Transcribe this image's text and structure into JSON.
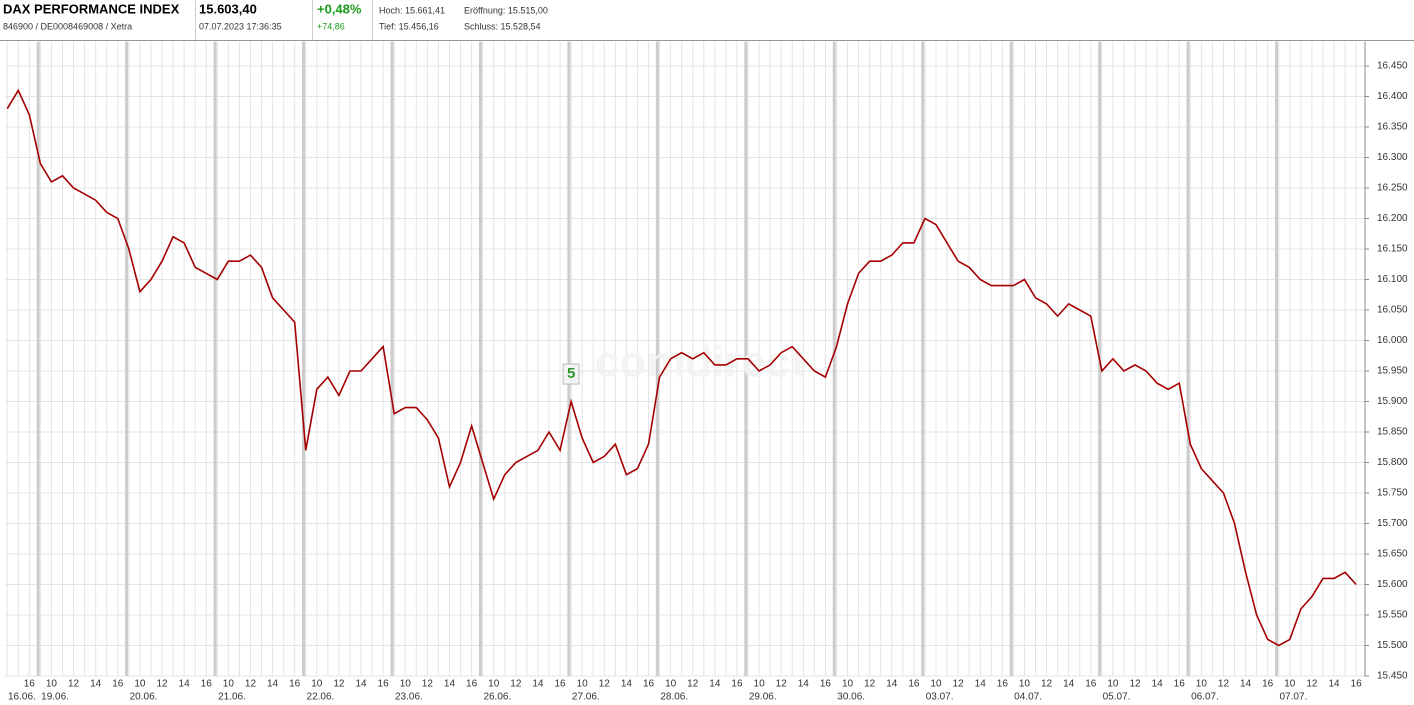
{
  "header": {
    "title": "DAX PERFORMANCE INDEX",
    "ids": "846900 / DE0008469008 / Xetra",
    "price": "15.603,40",
    "timestamp": "07.07.2023 17:36:35",
    "change_pct": "+0,48%",
    "change_abs": "+74,86",
    "high": "Hoch: 15.661,41",
    "open": "Eröffnung: 15.515,00",
    "low": "Tief: 15.456,16",
    "close": "Schluss: 15.528,54"
  },
  "chart_data": {
    "type": "line",
    "watermark": "comdirect",
    "annotation": "5",
    "categories": [
      null,
      null,
      "16",
      null,
      "10",
      null,
      "12",
      null,
      "14",
      null,
      "16",
      null,
      "10",
      null,
      "12",
      null,
      "14",
      null,
      "16",
      null,
      "10",
      null,
      "12",
      null,
      "14",
      null,
      "16",
      null,
      "10",
      null,
      "12",
      null,
      "14",
      null,
      "16",
      null,
      "10",
      null,
      "12",
      null,
      "14",
      null,
      "16",
      null,
      "10",
      null,
      "12",
      null,
      "14",
      null,
      "16",
      null,
      "10",
      null,
      "12",
      null,
      "14",
      null,
      "16",
      null,
      "10",
      null,
      "12",
      null,
      "14",
      null,
      "16",
      null,
      "10",
      null,
      "12",
      null,
      "14",
      null,
      "16",
      null,
      "10",
      null,
      "12",
      null,
      "14",
      null,
      "16",
      null,
      "10",
      null,
      "12",
      null,
      "14",
      null,
      "16",
      null,
      "10",
      null,
      "12",
      null,
      "14",
      null,
      "16",
      null,
      "10",
      null,
      "12",
      null,
      "14",
      null,
      "16",
      null,
      "10",
      null,
      "12",
      null,
      "14",
      null,
      "16",
      null,
      "10",
      null,
      "12",
      null,
      "14",
      null,
      "16"
    ],
    "day_labels": [
      "16.06.",
      null,
      null,
      "19.06.",
      null,
      null,
      null,
      null,
      null,
      null,
      null,
      "20.06.",
      null,
      null,
      null,
      null,
      null,
      null,
      null,
      "21.06.",
      null,
      null,
      null,
      null,
      null,
      null,
      null,
      "22.06.",
      null,
      null,
      null,
      null,
      null,
      null,
      null,
      "23.06.",
      null,
      null,
      null,
      null,
      null,
      null,
      null,
      "26.06.",
      null,
      null,
      null,
      null,
      null,
      null,
      null,
      "27.06.",
      null,
      null,
      null,
      null,
      null,
      null,
      null,
      "28.06.",
      null,
      null,
      null,
      null,
      null,
      null,
      null,
      "29.06.",
      null,
      null,
      null,
      null,
      null,
      null,
      null,
      "30.06.",
      null,
      null,
      null,
      null,
      null,
      null,
      null,
      "03.07.",
      null,
      null,
      null,
      null,
      null,
      null,
      null,
      "04.07.",
      null,
      null,
      null,
      null,
      null,
      null,
      null,
      "05.07.",
      null,
      null,
      null,
      null,
      null,
      null,
      null,
      "06.07.",
      null,
      null,
      null,
      null,
      null,
      null,
      null,
      "07.07.",
      null,
      null,
      null,
      null,
      null,
      null,
      null
    ],
    "series": [
      {
        "color": "#a50000",
        "values": [
          16380,
          16410,
          16370,
          16290,
          16260,
          16270,
          16250,
          16240,
          16230,
          16210,
          16200,
          16150,
          16080,
          16100,
          16130,
          16170,
          16160,
          16120,
          16110,
          16100,
          16130,
          16130,
          16140,
          16120,
          16070,
          16050,
          16030,
          15820,
          15920,
          15940,
          15910,
          15950,
          15950,
          15970,
          15990,
          15880,
          15890,
          15890,
          15870,
          15840,
          15760,
          15800,
          15860,
          15800,
          15740,
          15780,
          15800,
          15810,
          15820,
          15850,
          15820,
          15900,
          15840,
          15800,
          15810,
          15830,
          15780,
          15790,
          15830,
          15940,
          15970,
          15980,
          15970,
          15980,
          15960,
          15960,
          15970,
          15970,
          15950,
          15960,
          15980,
          15990,
          15970,
          15950,
          15940,
          15990,
          16060,
          16110,
          16130,
          16130,
          16140,
          16160,
          16160,
          16200,
          16190,
          16160,
          16130,
          16120,
          16100,
          16090,
          16090,
          16090,
          16100,
          16070,
          16060,
          16040,
          16060,
          16050,
          16040,
          15950,
          15970,
          15950,
          15960,
          15950,
          15930,
          15920,
          15930,
          15830,
          15790,
          15770,
          15750,
          15700,
          15620,
          15550,
          15510,
          15500,
          15510,
          15560,
          15580,
          15610,
          15610,
          15620,
          15600
        ]
      }
    ],
    "ylim": [
      15450,
      16490
    ],
    "yticks": [
      {
        "value": 15450,
        "label": "15.450"
      },
      {
        "value": 15500,
        "label": "15.500"
      },
      {
        "value": 15550,
        "label": "15.550"
      },
      {
        "value": 15600,
        "label": "15.600"
      },
      {
        "value": 15650,
        "label": "15.650"
      },
      {
        "value": 15700,
        "label": "15.700"
      },
      {
        "value": 15750,
        "label": "15.750"
      },
      {
        "value": 15800,
        "label": "15.800"
      },
      {
        "value": 15850,
        "label": "15.850"
      },
      {
        "value": 15900,
        "label": "15.900"
      },
      {
        "value": 15950,
        "label": "15.950"
      },
      {
        "value": 16000,
        "label": "16.000"
      },
      {
        "value": 16050,
        "label": "16.050"
      },
      {
        "value": 16100,
        "label": "16.100"
      },
      {
        "value": 16150,
        "label": "16.150"
      },
      {
        "value": 16200,
        "label": "16.200"
      },
      {
        "value": 16250,
        "label": "16.250"
      },
      {
        "value": 16300,
        "label": "16.300"
      },
      {
        "value": 16350,
        "label": "16.350"
      },
      {
        "value": 16400,
        "label": "16.400"
      },
      {
        "value": 16450,
        "label": "16.450"
      }
    ],
    "grid": true
  }
}
